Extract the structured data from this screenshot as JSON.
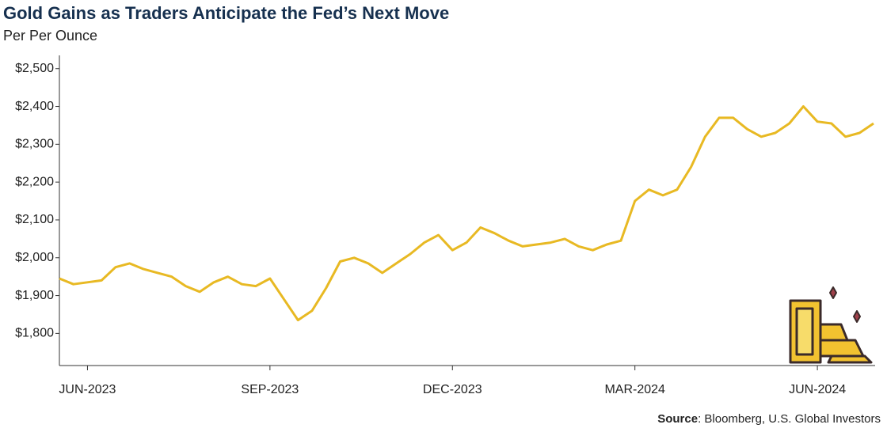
{
  "chart_data": {
    "type": "line",
    "title": "Gold Gains as Traders Anticipate the Fed’s Next Move",
    "subtitle": "Per Per Ounce",
    "source_label": "Source",
    "source": ": Bloomberg, U.S. Global Investors",
    "color": "#e8b923",
    "categories": [
      null,
      null,
      "JUN-2023",
      null,
      null,
      null,
      null,
      null,
      null,
      null,
      null,
      null,
      null,
      null,
      null,
      "SEP-2023",
      null,
      null,
      null,
      null,
      null,
      null,
      null,
      null,
      null,
      null,
      null,
      null,
      "DEC-2023",
      null,
      null,
      null,
      null,
      null,
      null,
      null,
      null,
      null,
      null,
      null,
      null,
      "MAR-2024",
      null,
      null,
      null,
      null,
      null,
      null,
      null,
      null,
      null,
      null,
      null,
      null,
      "JUN-2024",
      null,
      null,
      null,
      null
    ],
    "values": [
      1945,
      1930,
      1935,
      1940,
      1975,
      1985,
      1970,
      1960,
      1950,
      1925,
      1910,
      1935,
      1950,
      1930,
      1925,
      1945,
      1890,
      1835,
      1860,
      1920,
      1990,
      2000,
      1985,
      1960,
      1985,
      2010,
      2040,
      2060,
      2020,
      2040,
      2080,
      2065,
      2045,
      2030,
      2035,
      2040,
      2050,
      2030,
      2020,
      2035,
      2045,
      2150,
      2180,
      2165,
      2180,
      2240,
      2320,
      2370,
      2370,
      2340,
      2320,
      2330,
      2355,
      2400,
      2360,
      2355,
      2320,
      2330,
      2355
    ],
    "ylim": [
      1715,
      2535
    ],
    "yticks": [
      {
        "value": 1800,
        "label": "$1,800"
      },
      {
        "value": 1900,
        "label": "$1,900"
      },
      {
        "value": 2000,
        "label": "$2,000"
      },
      {
        "value": 2100,
        "label": "$2,100"
      },
      {
        "value": 2200,
        "label": "$2,200"
      },
      {
        "value": 2300,
        "label": "$2,300"
      },
      {
        "value": 2400,
        "label": "$2,400"
      },
      {
        "value": 2500,
        "label": "$2,500"
      }
    ],
    "grid": false
  }
}
